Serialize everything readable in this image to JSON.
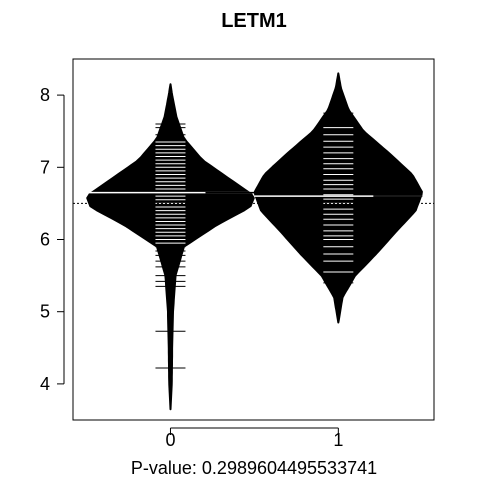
{
  "chart_data": {
    "type": "beanplot",
    "title": "LETM1",
    "xlabel": "P-value: 0.2989604495533741",
    "ylabel": "",
    "ylim": [
      3.5,
      8.5
    ],
    "yticks": [
      4,
      5,
      6,
      7,
      8
    ],
    "categories": [
      "0",
      "1"
    ],
    "overall_mean": 6.5,
    "grid": false,
    "series": [
      {
        "category": "0",
        "mean": 6.65,
        "density": [
          [
            3.65,
            0.0
          ],
          [
            4.0,
            0.015
          ],
          [
            4.5,
            0.02
          ],
          [
            5.0,
            0.03
          ],
          [
            5.5,
            0.06
          ],
          [
            5.9,
            0.16
          ],
          [
            6.2,
            0.55
          ],
          [
            6.45,
            0.95
          ],
          [
            6.6,
            1.0
          ],
          [
            6.8,
            0.75
          ],
          [
            7.1,
            0.38
          ],
          [
            7.4,
            0.16
          ],
          [
            7.7,
            0.07
          ],
          [
            8.0,
            0.02
          ],
          [
            8.15,
            0.0
          ]
        ],
        "observations": [
          4.22,
          4.73,
          5.35,
          5.42,
          5.5,
          5.62,
          5.7,
          5.78,
          5.84,
          5.9,
          5.95,
          6.0,
          6.05,
          6.1,
          6.15,
          6.2,
          6.25,
          6.3,
          6.35,
          6.4,
          6.45,
          6.5,
          6.55,
          6.6,
          6.65,
          6.7,
          6.75,
          6.8,
          6.85,
          6.9,
          6.95,
          7.0,
          7.05,
          7.1,
          7.15,
          7.2,
          7.25,
          7.3,
          7.35,
          7.45,
          7.55,
          7.6
        ]
      },
      {
        "category": "1",
        "mean": 6.6,
        "density": [
          [
            4.85,
            0.0
          ],
          [
            5.2,
            0.05
          ],
          [
            5.5,
            0.2
          ],
          [
            5.8,
            0.45
          ],
          [
            6.1,
            0.68
          ],
          [
            6.4,
            0.92
          ],
          [
            6.65,
            1.0
          ],
          [
            6.9,
            0.88
          ],
          [
            7.2,
            0.6
          ],
          [
            7.5,
            0.3
          ],
          [
            7.8,
            0.12
          ],
          [
            8.1,
            0.03
          ],
          [
            8.3,
            0.0
          ]
        ],
        "observations": [
          5.4,
          5.55,
          5.7,
          5.8,
          5.9,
          6.0,
          6.05,
          6.12,
          6.2,
          6.28,
          6.35,
          6.42,
          6.5,
          6.56,
          6.62,
          6.7,
          6.76,
          6.82,
          6.9,
          6.98,
          7.05,
          7.12,
          7.2,
          7.28,
          7.36,
          7.45,
          7.55,
          7.75
        ]
      }
    ]
  }
}
